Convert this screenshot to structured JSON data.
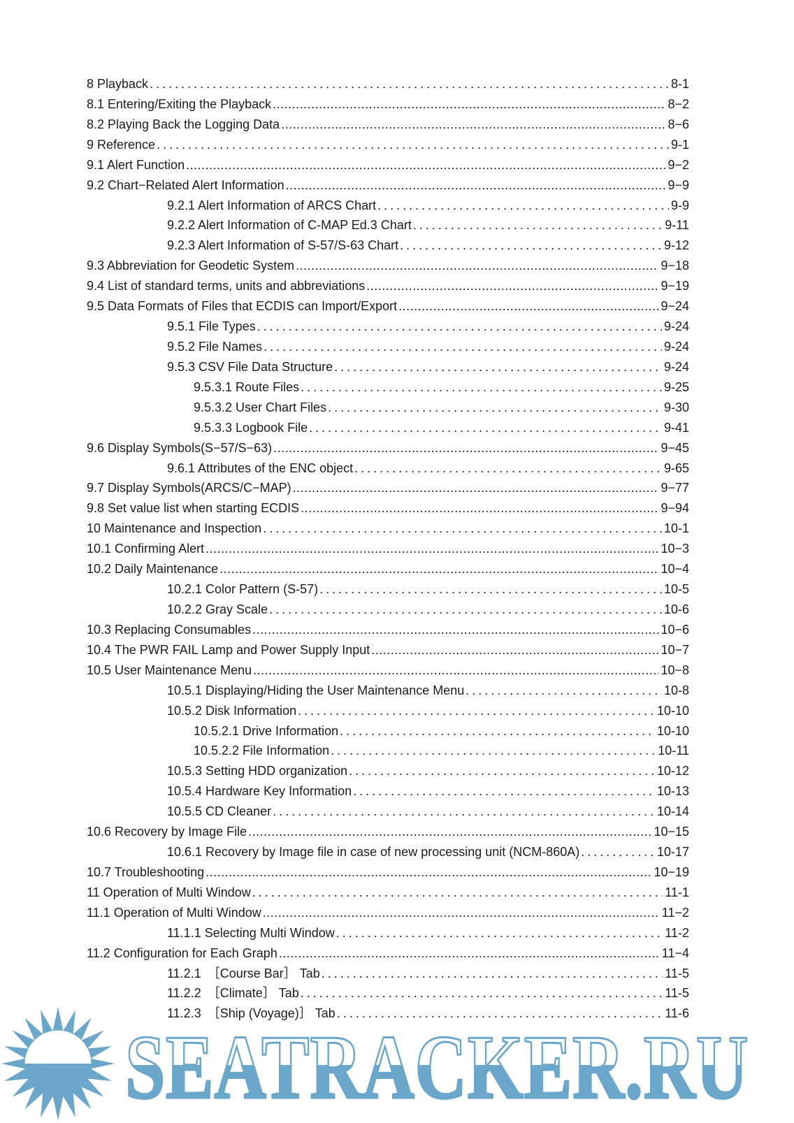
{
  "page": {
    "background_color": "#ffffff",
    "text_color": "#1c1c1c"
  },
  "watermark": {
    "text": "SEATRACKER.RU",
    "color": "#6ba7cb",
    "sun_icon": "sun-with-rays"
  },
  "toc": {
    "entries": [
      {
        "text": "8 Playback",
        "page": "8-1",
        "indent": 0,
        "leader": "sparse"
      },
      {
        "text": "8.1 Entering/Exiting the Playback",
        "page": "8−2",
        "indent": 0,
        "leader": "dense"
      },
      {
        "text": "8.2 Playing Back the Logging Data",
        "page": "8−6",
        "indent": 0,
        "leader": "dense"
      },
      {
        "text": "9 Reference",
        "page": "9-1",
        "indent": 0,
        "leader": "sparse"
      },
      {
        "text": "9.1 Alert Function",
        "page": "9−2",
        "indent": 0,
        "leader": "dense"
      },
      {
        "text": "9.2 Chart−Related Alert Information",
        "page": "9−9",
        "indent": 0,
        "leader": "dense"
      },
      {
        "text": "9.2.1 Alert Information of ARCS Chart",
        "page": "9-9",
        "indent": 1,
        "leader": "sparse"
      },
      {
        "text": "9.2.2 Alert Information of C-MAP Ed.3 Chart",
        "page": "9-11",
        "indent": 1,
        "leader": "sparse"
      },
      {
        "text": "9.2.3 Alert Information of S-57/S-63 Chart",
        "page": "9-12",
        "indent": 1,
        "leader": "sparse"
      },
      {
        "text": "9.3 Abbreviation for Geodetic System",
        "page": "9−18",
        "indent": 0,
        "leader": "dense"
      },
      {
        "text": "9.4 List of standard terms, units and abbreviations",
        "page": "9−19",
        "indent": 0,
        "leader": "dense"
      },
      {
        "text": "9.5 Data Formats of Files that ECDIS can Import/Export",
        "page": "9−24",
        "indent": 0,
        "leader": "dense"
      },
      {
        "text": "9.5.1 File Types",
        "page": "9-24",
        "indent": 1,
        "leader": "sparse"
      },
      {
        "text": "9.5.2 File Names",
        "page": "9-24",
        "indent": 1,
        "leader": "sparse"
      },
      {
        "text": "9.5.3 CSV File Data Structure",
        "page": "9-24",
        "indent": 1,
        "leader": "sparse"
      },
      {
        "text": "9.5.3.1 Route Files",
        "page": "9-25",
        "indent": 2,
        "leader": "sparse"
      },
      {
        "text": "9.5.3.2 User Chart Files",
        "page": "9-30",
        "indent": 2,
        "leader": "sparse"
      },
      {
        "text": "9.5.3.3 Logbook File",
        "page": "9-41",
        "indent": 2,
        "leader": "sparse"
      },
      {
        "text": "9.6 Display Symbols(S−57/S−63)",
        "page": "9−45",
        "indent": 0,
        "leader": "dense"
      },
      {
        "text": "9.6.1 Attributes of the ENC object",
        "page": "9-65",
        "indent": 1,
        "leader": "sparse"
      },
      {
        "text": "9.7 Display Symbols(ARCS/C−MAP)",
        "page": "9−77",
        "indent": 0,
        "leader": "dense"
      },
      {
        "text": "9.8 Set value list when starting ECDIS",
        "page": "9−94",
        "indent": 0,
        "leader": "dense"
      },
      {
        "text": "10 Maintenance and Inspection",
        "page": "10-1",
        "indent": 0,
        "leader": "sparse"
      },
      {
        "text": "10.1 Confirming Alert",
        "page": "10−3",
        "indent": 0,
        "leader": "dense"
      },
      {
        "text": "10.2 Daily Maintenance",
        "page": "10−4",
        "indent": 0,
        "leader": "dense"
      },
      {
        "text": "10.2.1 Color Pattern (S-57)",
        "page": "10-5",
        "indent": 1,
        "leader": "sparse"
      },
      {
        "text": "10.2.2 Gray Scale",
        "page": "10-6",
        "indent": 1,
        "leader": "sparse"
      },
      {
        "text": "10.3 Replacing Consumables",
        "page": "10−6",
        "indent": 0,
        "leader": "dense"
      },
      {
        "text": "10.4 The PWR FAIL Lamp and Power Supply Input",
        "page": "10−7",
        "indent": 0,
        "leader": "dense"
      },
      {
        "text": "10.5 User Maintenance Menu",
        "page": "10−8",
        "indent": 0,
        "leader": "dense"
      },
      {
        "text": "10.5.1 Displaying/Hiding the User Maintenance Menu",
        "page": "10-8",
        "indent": 1,
        "leader": "sparse"
      },
      {
        "text": "10.5.2 Disk Information",
        "page": "10-10",
        "indent": 1,
        "leader": "sparse"
      },
      {
        "text": "10.5.2.1 Drive Information",
        "page": "10-10",
        "indent": 2,
        "leader": "sparse"
      },
      {
        "text": "10.5.2.2 File Information",
        "page": "10-11",
        "indent": 2,
        "leader": "sparse"
      },
      {
        "text": "10.5.3 Setting HDD organization",
        "page": "10-12",
        "indent": 1,
        "leader": "sparse"
      },
      {
        "text": "10.5.4 Hardware Key Information",
        "page": "10-13",
        "indent": 1,
        "leader": "sparse"
      },
      {
        "text": "10.5.5 CD Cleaner",
        "page": "10-14",
        "indent": 1,
        "leader": "sparse"
      },
      {
        "text": "10.6 Recovery by Image File",
        "page": "10−15",
        "indent": 0,
        "leader": "dense"
      },
      {
        "text": "10.6.1 Recovery by Image file in case of new processing unit (NCM-860A)",
        "page": "10-17",
        "indent": 1,
        "leader": "sparse"
      },
      {
        "text": "10.7 Troubleshooting",
        "page": "10−19",
        "indent": 0,
        "leader": "dense"
      },
      {
        "text": "11 Operation of Multi Window",
        "page": "11-1",
        "indent": 0,
        "leader": "sparse"
      },
      {
        "text": "11.1 Operation of Multi Window",
        "page": "11−2",
        "indent": 0,
        "leader": "dense"
      },
      {
        "text": "11.1.1 Selecting Multi Window",
        "page": "11-2",
        "indent": 1,
        "leader": "sparse"
      },
      {
        "text": "11.2 Configuration for Each Graph",
        "page": "11−4",
        "indent": 0,
        "leader": "dense"
      },
      {
        "text": "11.2.1　［Course Bar］ Tab",
        "page": "11-5",
        "indent": 1,
        "leader": "sparse"
      },
      {
        "text": "11.2.2　［Climate］ Tab",
        "page": "11-5",
        "indent": 1,
        "leader": "sparse"
      },
      {
        "text": "11.2.3　［Ship (Voyage)］ Tab",
        "page": "11-6",
        "indent": 1,
        "leader": "sparse"
      }
    ]
  }
}
